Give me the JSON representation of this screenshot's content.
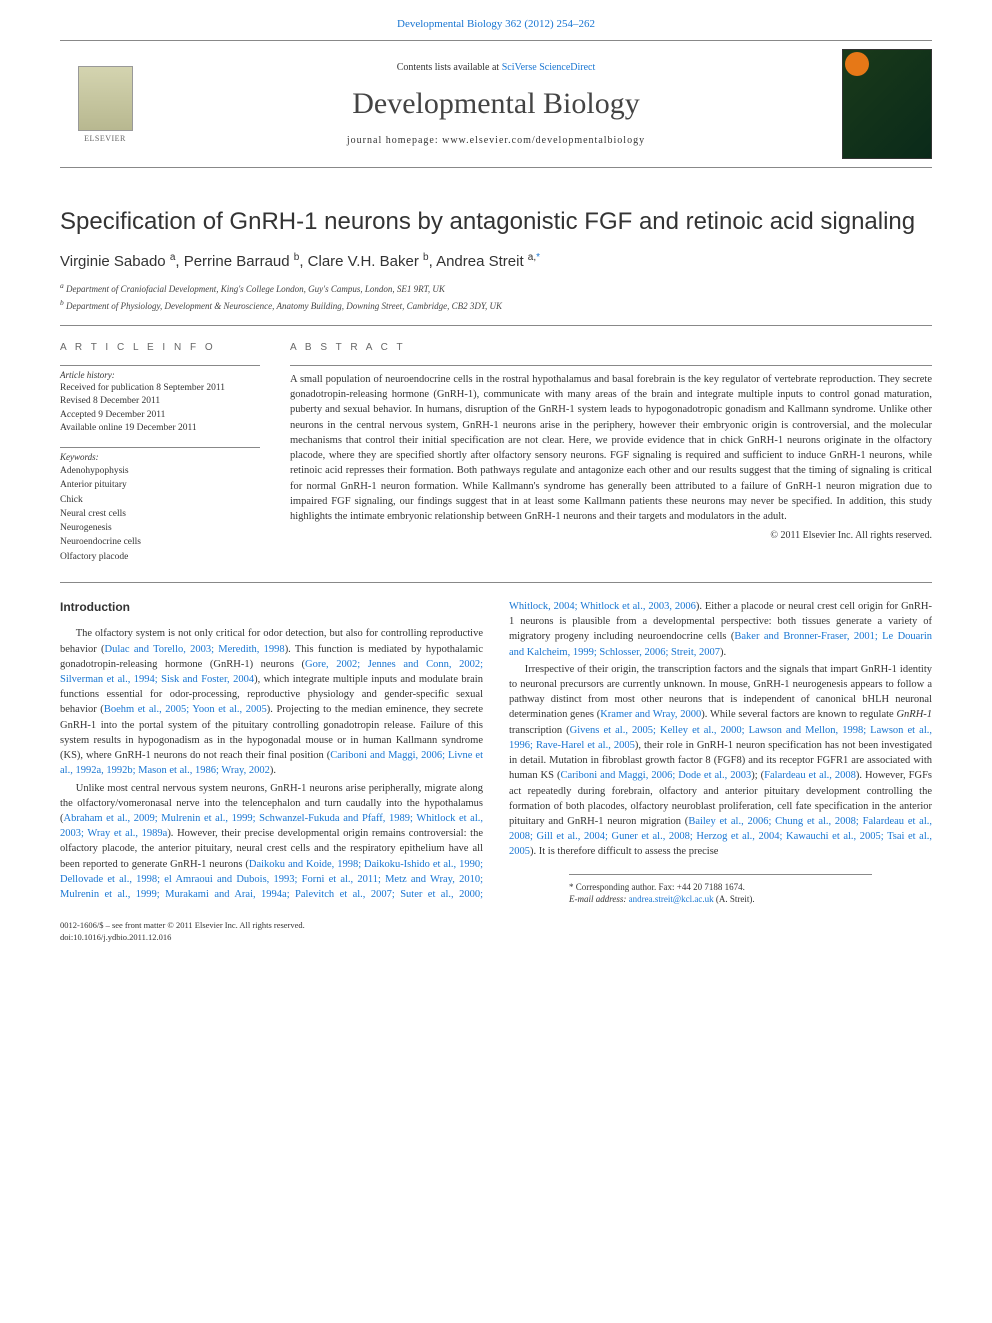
{
  "top_link": {
    "text": "Developmental Biology 362 (2012) 254–262",
    "href_label": "Developmental Biology"
  },
  "header": {
    "contents_prefix": "Contents lists available at ",
    "contents_link": "SciVerse ScienceDirect",
    "journal": "Developmental Biology",
    "homepage_prefix": "journal homepage: ",
    "homepage": "www.elsevier.com/developmentalbiology",
    "publisher": "ELSEVIER"
  },
  "article": {
    "title": "Specification of GnRH-1 neurons by antagonistic FGF and retinoic acid signaling",
    "authors_html": "Virginie Sabado <span class='sup'>a</span>, Perrine Barraud <span class='sup'>b</span>, Clare V.H. Baker <span class='sup'>b</span>, Andrea Streit <span class='sup'>a,</span><span class='sup corr'>*</span>",
    "affiliations": [
      "a Department of Craniofacial Development, King's College London, Guy's Campus, London, SE1 9RT, UK",
      "b Department of Physiology, Development & Neuroscience, Anatomy Building, Downing Street, Cambridge, CB2 3DY, UK"
    ]
  },
  "info": {
    "heading": "A R T I C L E   I N F O",
    "history_label": "Article history:",
    "history": "Received for publication 8 September 2011\nRevised 8 December 2011\nAccepted 9 December 2011\nAvailable online 19 December 2011",
    "keywords_label": "Keywords:",
    "keywords": [
      "Adenohypophysis",
      "Anterior pituitary",
      "Chick",
      "Neural crest cells",
      "Neurogenesis",
      "Neuroendocrine cells",
      "Olfactory placode"
    ]
  },
  "abstract": {
    "heading": "A B S T R A C T",
    "body": "A small population of neuroendocrine cells in the rostral hypothalamus and basal forebrain is the key regulator of vertebrate reproduction. They secrete gonadotropin-releasing hormone (GnRH-1), communicate with many areas of the brain and integrate multiple inputs to control gonad maturation, puberty and sexual behavior. In humans, disruption of the GnRH-1 system leads to hypogonadotropic gonadism and Kallmann syndrome. Unlike other neurons in the central nervous system, GnRH-1 neurons arise in the periphery, however their embryonic origin is controversial, and the molecular mechanisms that control their initial specification are not clear. Here, we provide evidence that in chick GnRH-1 neurons originate in the olfactory placode, where they are specified shortly after olfactory sensory neurons. FGF signaling is required and sufficient to induce GnRH-1 neurons, while retinoic acid represses their formation. Both pathways regulate and antagonize each other and our results suggest that the timing of signaling is critical for normal GnRH-1 neuron formation. While Kallmann's syndrome has generally been attributed to a failure of GnRH-1 neuron migration due to impaired FGF signaling, our findings suggest that in at least some Kallmann patients these neurons may never be specified. In addition, this study highlights the intimate embryonic relationship between GnRH-1 neurons and their targets and modulators in the adult.",
    "copyright": "© 2011 Elsevier Inc. All rights reserved."
  },
  "body": {
    "intro_heading": "Introduction",
    "p1_pre": "The olfactory system is not only critical for odor detection, but also for controlling reproductive behavior (",
    "p1_ref1": "Dulac and Torello, 2003; Meredith, 1998",
    "p1_mid1": "). This function is mediated by hypothalamic gonadotropin-releasing hormone (GnRH-1) neurons (",
    "p1_ref2": "Gore, 2002; Jennes and Conn, 2002; Silverman et al., 1994; Sisk and Foster, 2004",
    "p1_mid2": "), which integrate multiple inputs and modulate brain functions essential for odor-processing, reproductive physiology and gender-specific sexual behavior (",
    "p1_ref3": "Boehm et al., 2005; Yoon et al., 2005",
    "p1_mid3": "). Projecting to the median eminence, they secrete GnRH-1 into the portal system of the pituitary controlling gonadotropin release. Failure of this system results in hypogonadism as in the hypogonadal mouse or in human Kallmann syndrome (KS), where GnRH-1 neurons do not reach their final position (",
    "p1_ref4": "Cariboni and Maggi, 2006; Livne et al., 1992a, 1992b; Mason et al., 1986; Wray, 2002",
    "p1_post": ").",
    "p2_pre": "Unlike most central nervous system neurons, GnRH-1 neurons arise peripherally, migrate along the olfactory/vomeronasal nerve into the telencephalon and turn caudally into the hypothalamus (",
    "p2_ref1": "Abraham et al., 2009; Mulrenin et al., 1999; Schwanzel-Fukuda and Pfaff, 1989; Whitlock et al., 2003; Wray et al., 1989a",
    "p2_mid1": "). However, their precise developmental origin remains controversial: the olfactory placode, the anterior pituitary, neural crest cells and the respiratory epithelium have all been reported to generate GnRH-1 neurons (",
    "p2_ref2": "Daikoku and Koide, 1998; Daikoku-Ishido et al., 1990; Dellovade et al., 1998; el Amraoui and Dubois, 1993; Forni et al., 2011; Metz and Wray, 2010; Mulrenin et al., 1999; Murakami and Arai, 1994a; Palevitch et al., 2007; Suter et al., 2000; Whitlock, 2004; Whitlock et al., 2003, 2006",
    "p2_mid2": "). Either a placode or neural crest cell origin for GnRH-1 neurons is plausible from a developmental perspective: both tissues generate a variety of migratory progeny including neuroendocrine cells (",
    "p2_ref3": "Baker and Bronner-Fraser, 2001; Le Douarin and Kalcheim, 1999; Schlosser, 2006; Streit, 2007",
    "p2_post": ").",
    "p3_pre": "Irrespective of their origin, the transcription factors and the signals that impart GnRH-1 identity to neuronal precursors are currently unknown. In mouse, GnRH-1 neurogenesis appears to follow a pathway distinct from most other neurons that is independent of canonical bHLH neuronal determination genes (",
    "p3_ref1": "Kramer and Wray, 2000",
    "p3_mid1": "). While several factors are known to regulate ",
    "p3_ital": "GnRH-1",
    "p3_mid2": " transcription (",
    "p3_ref2": "Givens et al., 2005; Kelley et al., 2000; Lawson and Mellon, 1998; Lawson et al., 1996; Rave-Harel et al., 2005",
    "p3_mid3": "), their role in GnRH-1 neuron specification has not been investigated in detail. Mutation in fibroblast growth factor 8 (FGF8) and its receptor FGFR1 are associated with human KS (",
    "p3_ref3": "Cariboni and Maggi, 2006; Dode et al., 2003",
    "p3_mid4": "); (",
    "p3_ref4": "Falardeau et al., 2008",
    "p3_mid5": "). However, FGFs act repeatedly during forebrain, olfactory and anterior pituitary development controlling the formation of both placodes, olfactory neuroblast proliferation, cell fate specification in the anterior pituitary and GnRH-1 neuron migration (",
    "p3_ref5": "Bailey et al., 2006; Chung et al., 2008; Falardeau et al., 2008; Gill et al., 2004; Guner et al., 2008; Herzog et al., 2004; Kawauchi et al., 2005; Tsai et al., 2005",
    "p3_post": "). It is therefore difficult to assess the precise"
  },
  "footer": {
    "corr_label": "* Corresponding author. Fax: +44 20 7188 1674.",
    "email_label": "E-mail address: ",
    "email": "andrea.streit@kcl.ac.uk",
    "email_suffix": " (A. Streit).",
    "front_matter": "0012-1606/$ – see front matter © 2011 Elsevier Inc. All rights reserved.",
    "doi": "doi:10.1016/j.ydbio.2011.12.016"
  },
  "colors": {
    "link": "#1976d2",
    "orange": "#e67817",
    "text": "#333333",
    "rule": "#888888"
  }
}
